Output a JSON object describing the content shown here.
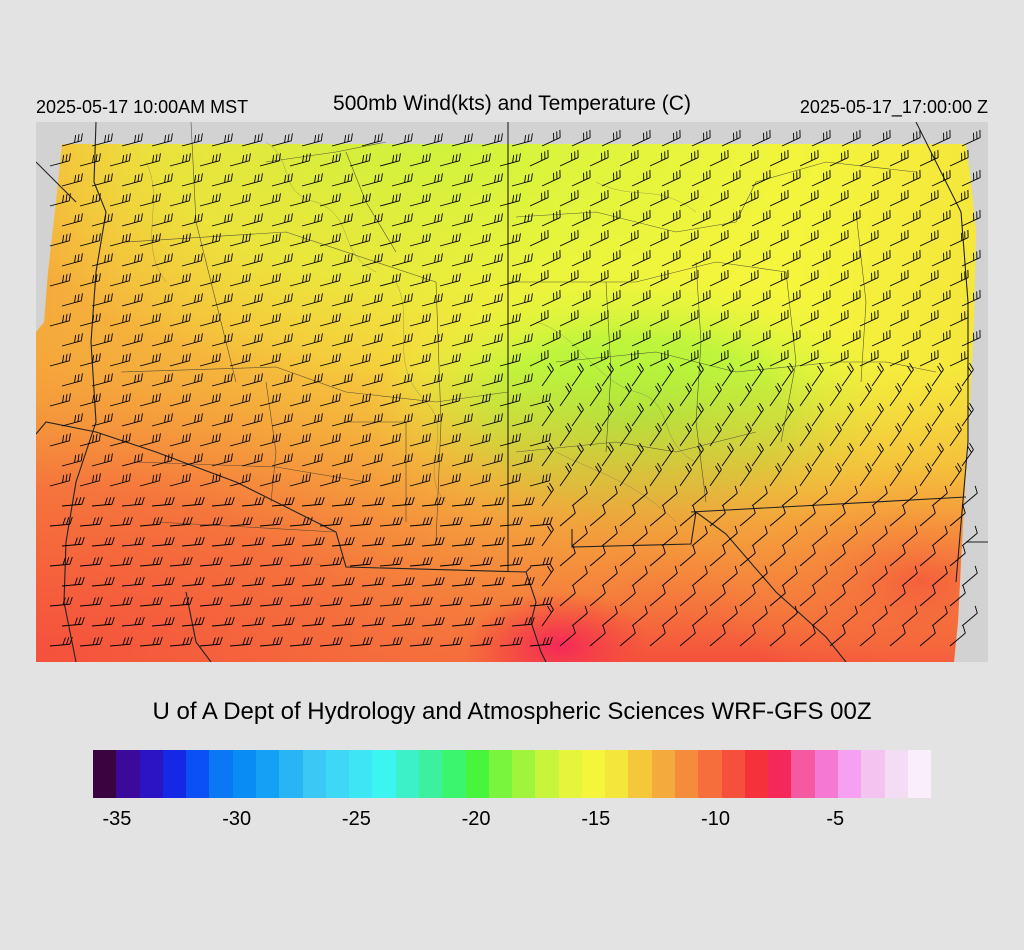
{
  "header": {
    "local_time": "2025-05-17 10:00AM MST",
    "title": "500mb Wind(kts) and Temperature (C)",
    "valid_time": "2025-05-17_17:00:00 Z"
  },
  "footer": {
    "credit": "U of A Dept of Hydrology and Atmospheric Sciences WRF-GFS 00Z"
  },
  "legend": {
    "colors": [
      "#3a0440",
      "#3c0a9a",
      "#2c14c4",
      "#1428e6",
      "#0a50f5",
      "#0a78f5",
      "#0a8cf5",
      "#14a0f5",
      "#28b4f5",
      "#3cc8f5",
      "#3cd8f5",
      "#3ce6f5",
      "#3cf5f0",
      "#3cf0c8",
      "#3cf0a0",
      "#3cf56e",
      "#46f53c",
      "#78f53c",
      "#a0f53c",
      "#c8f53c",
      "#e6f53c",
      "#f5f53c",
      "#f5e63c",
      "#f5c83c",
      "#f5aa3c",
      "#f58c3c",
      "#f56e3c",
      "#f5503c",
      "#f5323c",
      "#f5285a",
      "#f55aa0",
      "#f578d2",
      "#f5a0f0",
      "#f5c3f0",
      "#f5dcf5",
      "#fbeefb"
    ],
    "tick_labels": [
      "-35",
      "-30",
      "-25",
      "-20",
      "-15",
      "-10",
      "-5"
    ],
    "tick_values": [
      -35,
      -30,
      -25,
      -20,
      -15,
      -10,
      -5
    ],
    "range": [
      -36,
      -1
    ]
  },
  "map": {
    "field": "500mb temperature (C) with wind barbs (kts)",
    "background_gray": "#d2d2d2",
    "region_temps": [
      {
        "region": "southwest",
        "temp_c": -9
      },
      {
        "region": "west-central",
        "temp_c": -12
      },
      {
        "region": "north",
        "temp_c": -17
      },
      {
        "region": "central-east",
        "temp_c": -18
      },
      {
        "region": "south",
        "temp_c": -8
      },
      {
        "region": "east",
        "temp_c": -13
      }
    ]
  }
}
